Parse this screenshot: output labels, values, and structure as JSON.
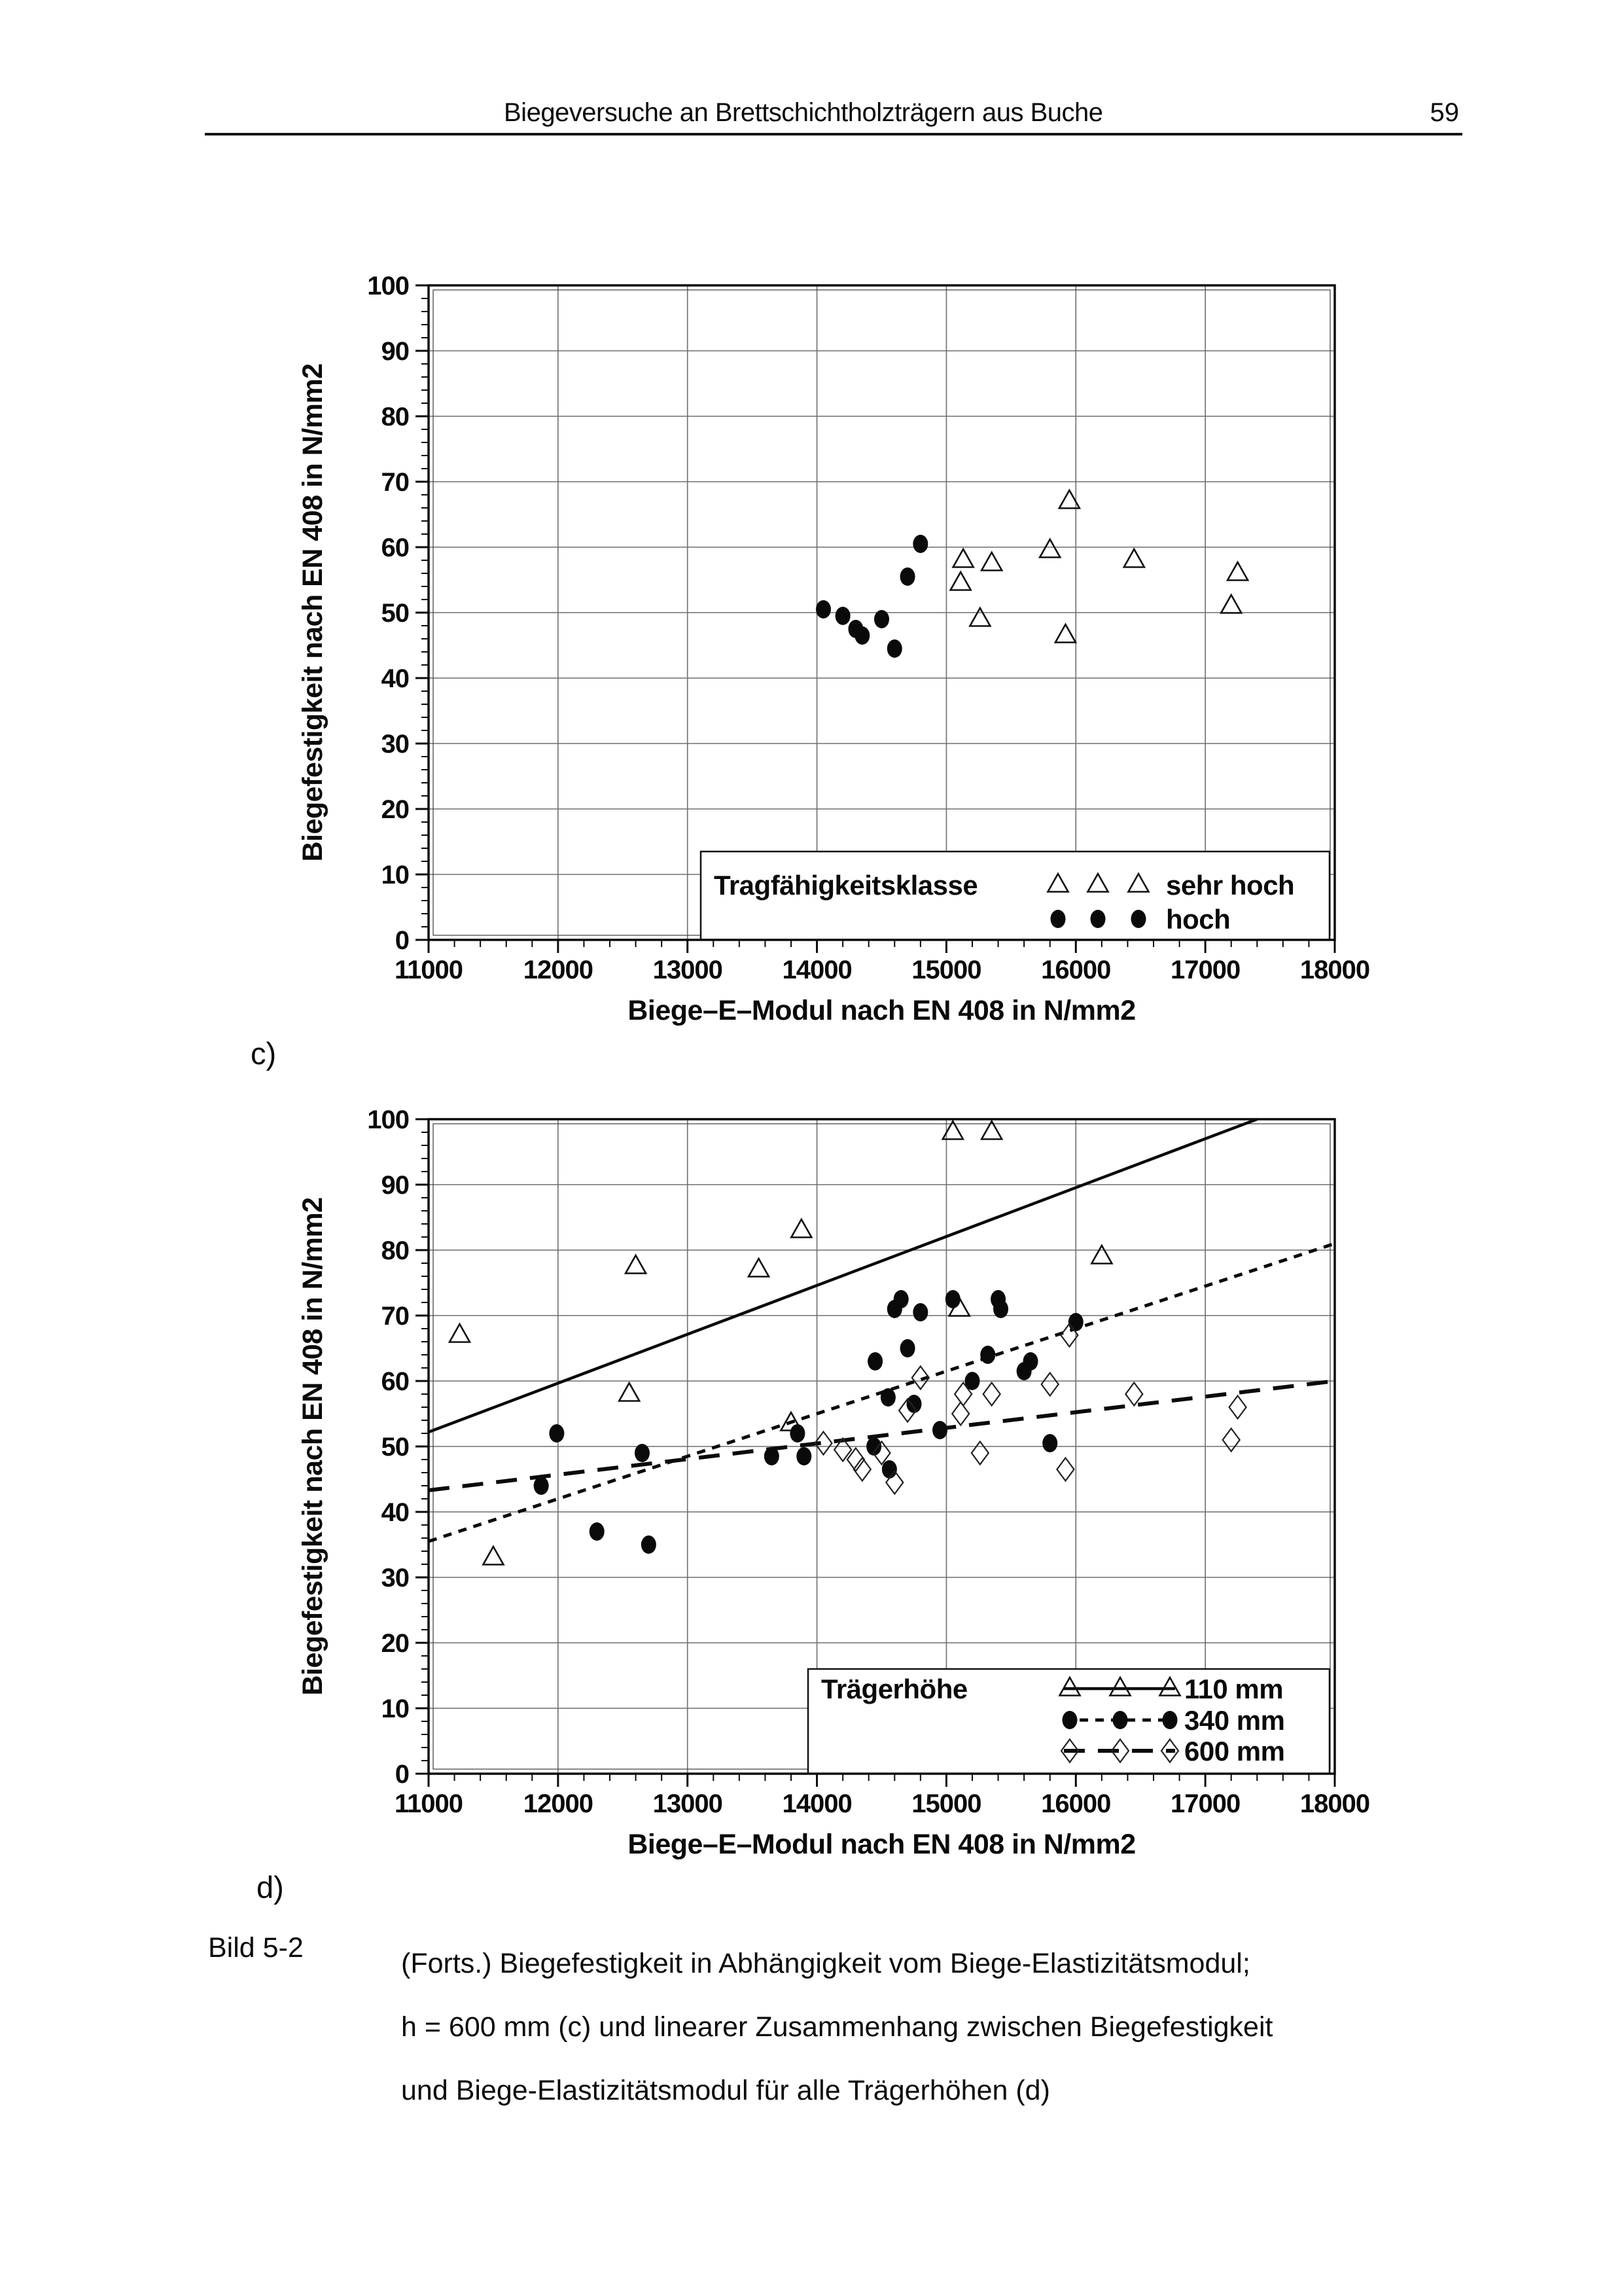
{
  "header": {
    "title": "Biegeversuche an Brettschichtholzträgern aus Buche",
    "page_number": "59"
  },
  "labels": {
    "c": "c)",
    "d": "d)"
  },
  "caption": {
    "label": "Bild 5-2",
    "lines": [
      "(Forts.) Biegefestigkeit in Abhängigkeit vom Biege-Elastizitätsmodul;",
      "h = 600 mm (c) und linearer Zusammenhang zwischen Biegefestigkeit",
      "und Biege-Elastizitätsmodul für alle Trägerhöhen (d)"
    ]
  },
  "chart_data": [
    {
      "id": "c",
      "type": "scatter",
      "xlabel": "Biege–E–Modul nach EN 408 in N/mm2",
      "ylabel": "Biegefestigkeit nach EN 408 in N/mm2",
      "xlim": [
        11000,
        18000
      ],
      "ylim": [
        0,
        100
      ],
      "xticks": [
        11000,
        12000,
        13000,
        14000,
        15000,
        16000,
        17000,
        18000
      ],
      "yticks": [
        0,
        10,
        20,
        30,
        40,
        50,
        60,
        70,
        80,
        90,
        100
      ],
      "grid": true,
      "legend": {
        "title": "Tragfähigkeitsklasse",
        "position": "bottom-right inside",
        "entries": [
          {
            "label": "sehr hoch",
            "marker": "triangle-open"
          },
          {
            "label": "hoch",
            "marker": "circle-filled"
          }
        ]
      },
      "series": [
        {
          "name": "sehr hoch",
          "marker": "triangle-open",
          "points": [
            [
              15130,
              58
            ],
            [
              15110,
              54.5
            ],
            [
              15350,
              57.5
            ],
            [
              15260,
              49
            ],
            [
              15800,
              59.5
            ],
            [
              15950,
              67
            ],
            [
              15920,
              46.5
            ],
            [
              16450,
              58
            ],
            [
              17250,
              56
            ],
            [
              17200,
              51
            ]
          ]
        },
        {
          "name": "hoch",
          "marker": "circle-filled",
          "points": [
            [
              14050,
              50.5
            ],
            [
              14200,
              49.5
            ],
            [
              14300,
              47.5
            ],
            [
              14350,
              46.5
            ],
            [
              14500,
              49
            ],
            [
              14600,
              44.5
            ],
            [
              14700,
              55.5
            ],
            [
              14800,
              60.5
            ]
          ]
        }
      ]
    },
    {
      "id": "d",
      "type": "scatter",
      "xlabel": "Biege–E–Modul nach EN 408 in N/mm2",
      "ylabel": "Biegefestigkeit nach EN 408 in N/mm2",
      "xlim": [
        11000,
        18000
      ],
      "ylim": [
        0,
        100
      ],
      "xticks": [
        11000,
        12000,
        13000,
        14000,
        15000,
        16000,
        17000,
        18000
      ],
      "yticks": [
        0,
        10,
        20,
        30,
        40,
        50,
        60,
        70,
        80,
        90,
        100
      ],
      "grid": true,
      "legend": {
        "title": "Trägerhöhe",
        "position": "bottom-right inside",
        "entries": [
          {
            "label": "110 mm",
            "marker": "triangle-open",
            "line": "solid"
          },
          {
            "label": "340 mm",
            "marker": "circle-filled",
            "line": "dash-fine"
          },
          {
            "label": "600 mm",
            "marker": "diamond-open",
            "line": "dash-coarse"
          }
        ]
      },
      "series": [
        {
          "name": "110 mm",
          "marker": "triangle-open",
          "line": "solid",
          "trend": {
            "x1": 11000,
            "y1": 52.2,
            "x2": 17400,
            "y2": 100
          },
          "points": [
            [
              11240,
              67
            ],
            [
              11500,
              33
            ],
            [
              12550,
              58
            ],
            [
              12600,
              77.5
            ],
            [
              13550,
              77
            ],
            [
              13800,
              53.5
            ],
            [
              13880,
              83
            ],
            [
              15050,
              98
            ],
            [
              15350,
              98
            ],
            [
              15100,
              71
            ],
            [
              16200,
              79
            ]
          ]
        },
        {
          "name": "340 mm",
          "marker": "circle-filled",
          "line": "dash-fine",
          "trend": {
            "x1": 11000,
            "y1": 35.5,
            "x2": 18000,
            "y2": 81
          },
          "points": [
            [
              11870,
              44
            ],
            [
              11990,
              52
            ],
            [
              12300,
              37
            ],
            [
              12650,
              49
            ],
            [
              12700,
              35
            ],
            [
              13650,
              48.5
            ],
            [
              13850,
              52
            ],
            [
              13900,
              48.5
            ],
            [
              14440,
              50
            ],
            [
              14450,
              63
            ],
            [
              14550,
              57.5
            ],
            [
              14560,
              46.5
            ],
            [
              14600,
              71
            ],
            [
              14650,
              72.5
            ],
            [
              14700,
              65
            ],
            [
              14750,
              56.5
            ],
            [
              14800,
              70.5
            ],
            [
              14950,
              52.5
            ],
            [
              15050,
              72.5
            ],
            [
              15200,
              60
            ],
            [
              15320,
              64
            ],
            [
              15400,
              72.5
            ],
            [
              15420,
              71
            ],
            [
              15600,
              61.5
            ],
            [
              15650,
              63
            ],
            [
              15800,
              50.5
            ],
            [
              16000,
              69
            ]
          ]
        },
        {
          "name": "600 mm",
          "marker": "diamond-open",
          "line": "dash-coarse",
          "trend": {
            "x1": 11000,
            "y1": 43.3,
            "x2": 18000,
            "y2": 60
          },
          "points": [
            [
              14050,
              50.5
            ],
            [
              14200,
              49.5
            ],
            [
              14300,
              48
            ],
            [
              14350,
              46.5
            ],
            [
              14500,
              49
            ],
            [
              14600,
              44.5
            ],
            [
              14700,
              55.5
            ],
            [
              14800,
              60.5
            ],
            [
              15130,
              58
            ],
            [
              15110,
              55
            ],
            [
              15350,
              58
            ],
            [
              15260,
              49
            ],
            [
              15800,
              59.5
            ],
            [
              15950,
              67
            ],
            [
              15920,
              46.5
            ],
            [
              16450,
              58
            ],
            [
              17250,
              56
            ],
            [
              17200,
              51
            ]
          ]
        }
      ]
    }
  ]
}
